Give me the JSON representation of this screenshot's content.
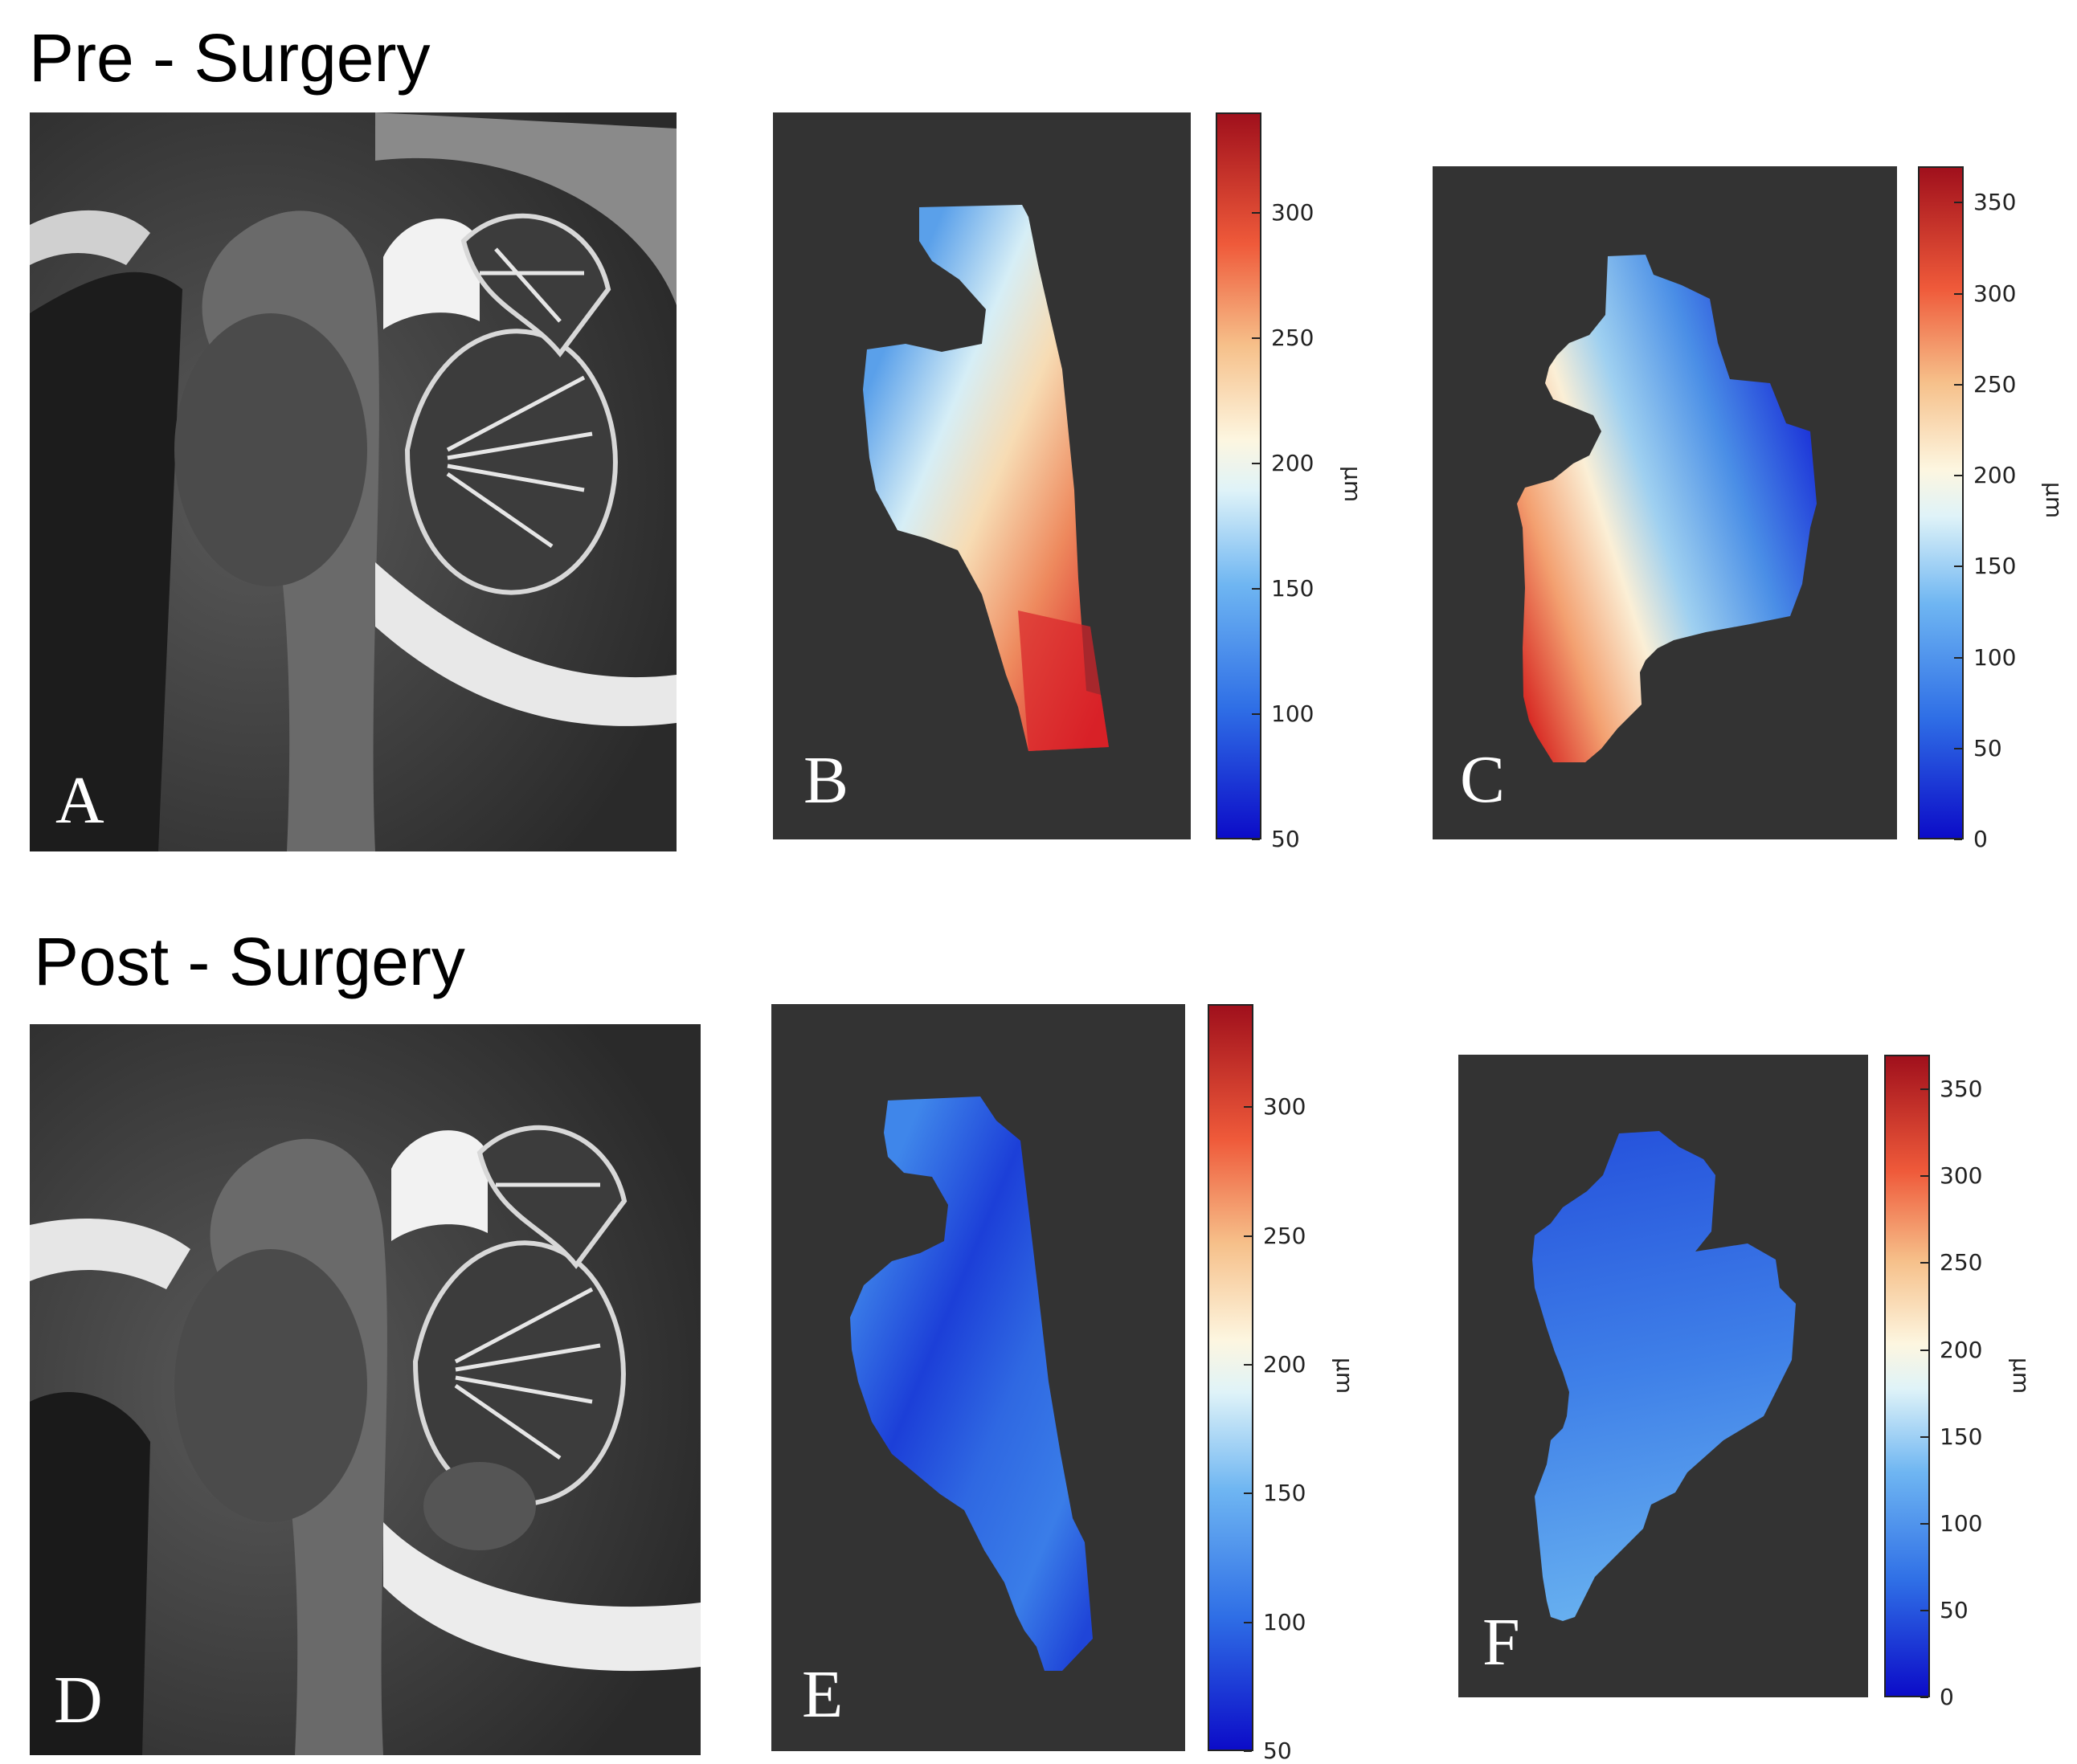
{
  "sections": {
    "pre": {
      "title": "Pre - Surgery"
    },
    "post": {
      "title": "Post - Surgery"
    }
  },
  "panels": {
    "A": {
      "letter": "A",
      "kind": "sagittal MRI"
    },
    "B": {
      "letter": "B",
      "kind": "thickness map"
    },
    "C": {
      "letter": "C",
      "kind": "thickness map"
    },
    "D": {
      "letter": "D",
      "kind": "sagittal MRI"
    },
    "E": {
      "letter": "E",
      "kind": "thickness map"
    },
    "F": {
      "letter": "F",
      "kind": "thickness map"
    }
  },
  "colorbars": {
    "B": {
      "ticks": [
        "300",
        "250",
        "200",
        "150",
        "100",
        "50"
      ],
      "unit": "μm",
      "range": [
        50,
        340
      ]
    },
    "C": {
      "ticks": [
        "350",
        "300",
        "250",
        "200",
        "150",
        "100",
        "50",
        "0"
      ],
      "unit": "μm",
      "range": [
        0,
        370
      ]
    },
    "E": {
      "ticks": [
        "300",
        "250",
        "200",
        "150",
        "100",
        "50"
      ],
      "unit": "μm",
      "range": [
        50,
        340
      ]
    },
    "F": {
      "ticks": [
        "350",
        "300",
        "250",
        "200",
        "150",
        "100",
        "50",
        "0"
      ],
      "unit": "μm",
      "range": [
        0,
        370
      ]
    }
  },
  "colors": {
    "map_background": "#333333",
    "jet_low": "#1a1acc",
    "jet_mid": "#fdfbe8",
    "jet_high": "#b01020"
  }
}
